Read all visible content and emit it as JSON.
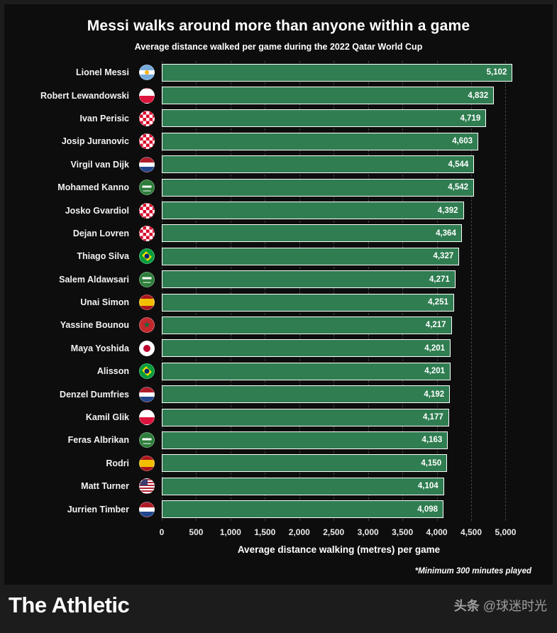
{
  "chart_data": {
    "type": "bar",
    "orientation": "horizontal",
    "title": "Messi walks around more than anyone within a game",
    "subtitle": "Average distance walked per game during the 2022 Qatar World Cup",
    "xlabel": "Average distance walking (metres) per game",
    "footnote": "*Minimum 300 minutes played",
    "grid": true,
    "xlim": [
      0,
      5150
    ],
    "xticks": [
      0,
      500,
      1000,
      1500,
      2000,
      2500,
      3000,
      3500,
      4000,
      4500,
      5000
    ],
    "xtick_labels": [
      "0",
      "500",
      "1,000",
      "1,500",
      "2,000",
      "2,500",
      "3,000",
      "3,500",
      "4,000",
      "4,500",
      "5,000"
    ],
    "bar_color": "#2f7d51",
    "bar_border_color": "#ffffff",
    "background_color": "#0d0d0d",
    "players": [
      {
        "name": "Lionel Messi",
        "country": "argentina",
        "value": 5102,
        "label": "5,102"
      },
      {
        "name": "Robert Lewandowski",
        "country": "poland",
        "value": 4832,
        "label": "4,832"
      },
      {
        "name": "Ivan Perisic",
        "country": "croatia",
        "value": 4719,
        "label": "4,719"
      },
      {
        "name": "Josip Juranovic",
        "country": "croatia",
        "value": 4603,
        "label": "4,603"
      },
      {
        "name": "Virgil van Dijk",
        "country": "netherlands",
        "value": 4544,
        "label": "4,544"
      },
      {
        "name": "Mohamed Kanno",
        "country": "saudi",
        "value": 4542,
        "label": "4,542"
      },
      {
        "name": "Josko Gvardiol",
        "country": "croatia",
        "value": 4392,
        "label": "4,392"
      },
      {
        "name": "Dejan Lovren",
        "country": "croatia",
        "value": 4364,
        "label": "4,364"
      },
      {
        "name": "Thiago Silva",
        "country": "brazil",
        "value": 4327,
        "label": "4,327"
      },
      {
        "name": "Salem Aldawsari",
        "country": "saudi",
        "value": 4271,
        "label": "4,271"
      },
      {
        "name": "Unai Simon",
        "country": "spain",
        "value": 4251,
        "label": "4,251"
      },
      {
        "name": "Yassine Bounou",
        "country": "morocco",
        "value": 4217,
        "label": "4,217"
      },
      {
        "name": "Maya Yoshida",
        "country": "japan",
        "value": 4201,
        "label": "4,201"
      },
      {
        "name": "Alisson",
        "country": "brazil",
        "value": 4201,
        "label": "4,201"
      },
      {
        "name": "Denzel Dumfries",
        "country": "netherlands",
        "value": 4192,
        "label": "4,192"
      },
      {
        "name": "Kamil Glik",
        "country": "poland",
        "value": 4177,
        "label": "4,177"
      },
      {
        "name": "Feras Albrikan",
        "country": "saudi",
        "value": 4163,
        "label": "4,163"
      },
      {
        "name": "Rodri",
        "country": "spain",
        "value": 4150,
        "label": "4,150"
      },
      {
        "name": "Matt Turner",
        "country": "usa",
        "value": 4104,
        "label": "4,104"
      },
      {
        "name": "Jurrien Timber",
        "country": "netherlands",
        "value": 4098,
        "label": "4,098"
      }
    ]
  },
  "footer": {
    "logo": "The Athletic",
    "watermark_prefix": "头条",
    "watermark_handle": "@球迷时光"
  }
}
